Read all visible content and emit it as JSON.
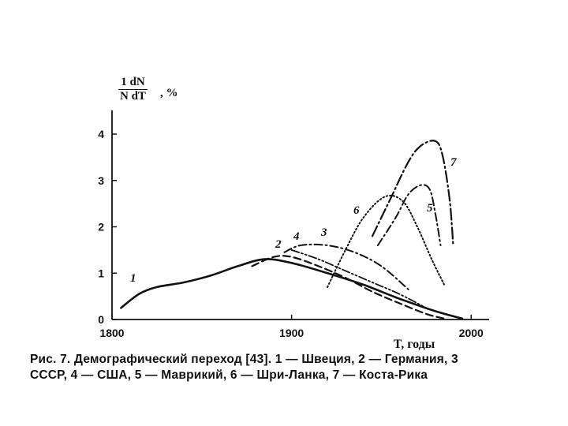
{
  "chart_data": {
    "type": "line",
    "ylabel": {
      "numerator": "1 dN",
      "denominator": "N dT",
      "unit": ", %"
    },
    "xlabel": "T, годы",
    "xlim": [
      1800,
      2010
    ],
    "ylim": [
      0,
      4.5
    ],
    "xticks": [
      1800,
      1900,
      2000
    ],
    "yticks": [
      0,
      1,
      2,
      3,
      4
    ],
    "series": [
      {
        "name": "1",
        "style": "solid",
        "x": [
          1805,
          1815,
          1825,
          1840,
          1855,
          1870,
          1885,
          1900,
          1920,
          1940,
          1960,
          1980,
          1995
        ],
        "y": [
          0.25,
          0.55,
          0.7,
          0.8,
          0.95,
          1.15,
          1.3,
          1.22,
          1.0,
          0.75,
          0.45,
          0.18,
          0.02
        ]
      },
      {
        "name": "2",
        "style": "dashed",
        "x": [
          1878,
          1890,
          1900,
          1915,
          1930,
          1945,
          1960,
          1975,
          1985
        ],
        "y": [
          1.15,
          1.35,
          1.35,
          1.15,
          0.9,
          0.6,
          0.35,
          0.12,
          0.02
        ]
      },
      {
        "name": "3",
        "style": "dash-dot",
        "x": [
          1896,
          1905,
          1920,
          1935,
          1950,
          1965
        ],
        "y": [
          1.45,
          1.6,
          1.6,
          1.45,
          1.15,
          0.65
        ]
      },
      {
        "name": "4",
        "style": "dash-dot-dot",
        "x": [
          1900,
          1915,
          1930,
          1945,
          1960,
          1975
        ],
        "y": [
          1.5,
          1.3,
          1.05,
          0.8,
          0.55,
          0.25
        ]
      },
      {
        "name": "5",
        "style": "dash-dot",
        "x": [
          1948,
          1958,
          1965,
          1972,
          1977,
          1980,
          1983
        ],
        "y": [
          1.6,
          2.2,
          2.7,
          2.9,
          2.8,
          2.3,
          1.6
        ]
      },
      {
        "name": "6",
        "style": "dotted",
        "x": [
          1920,
          1930,
          1940,
          1952,
          1962,
          1970,
          1978,
          1985
        ],
        "y": [
          0.7,
          1.5,
          2.2,
          2.65,
          2.55,
          2.0,
          1.3,
          0.75
        ]
      },
      {
        "name": "7",
        "style": "long-dash-dot",
        "x": [
          1945,
          1955,
          1965,
          1972,
          1980,
          1984,
          1988,
          1990
        ],
        "y": [
          1.8,
          2.6,
          3.4,
          3.75,
          3.85,
          3.55,
          2.6,
          1.6
        ]
      }
    ],
    "series_labels": [
      "1",
      "2",
      "3",
      "4",
      "5",
      "6",
      "7"
    ],
    "grid": false,
    "legend": "inline labels next to curves"
  },
  "caption": {
    "line1": "Рис. 7. Демографический переход [43]. 1 — Швеция, 2 — Германия, 3",
    "line2": "СССР, 4 — США, 5 — Маврикий, 6 — Шри-Ланка, 7 — Коста-Рика"
  }
}
